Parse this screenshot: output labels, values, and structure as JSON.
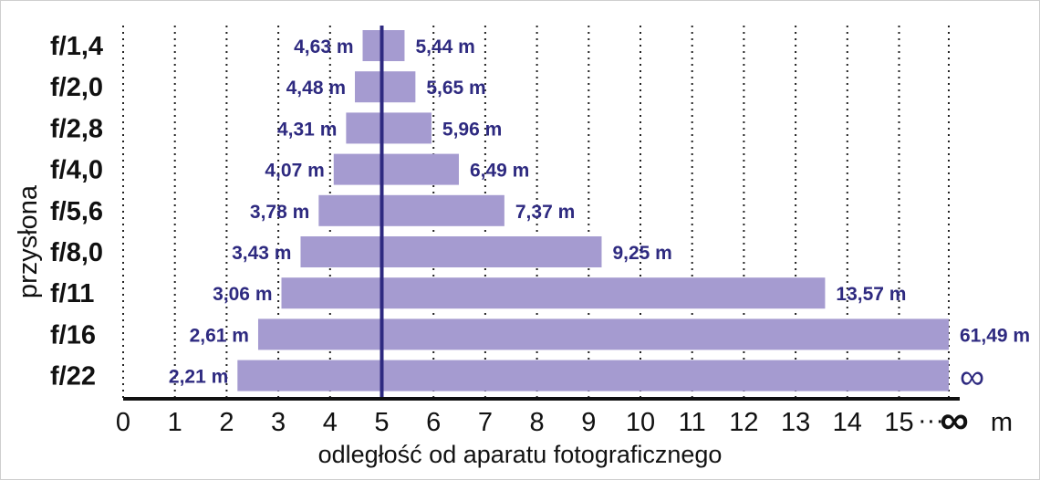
{
  "chart_data": {
    "type": "bar",
    "orientation": "horizontal-range",
    "ylabel": "przysłona",
    "xlabel": "odległość od aparatu fotograficznego",
    "x_unit": "m",
    "x_ticks": [
      "0",
      "1",
      "2",
      "3",
      "4",
      "5",
      "6",
      "7",
      "8",
      "9",
      "10",
      "11",
      "12",
      "13",
      "14",
      "15"
    ],
    "x_infinity_symbol": "∞",
    "x_ellipsis": "···",
    "focus_distance_m": 5,
    "grid": "vertical dotted",
    "colors": {
      "bar": "#a59bd0",
      "focus_line": "#2e2a80",
      "labels": "#2e2a80",
      "axis": "#111111"
    },
    "categories": [
      "f/1,4",
      "f/2,0",
      "f/2,8",
      "f/4,0",
      "f/5,6",
      "f/8,0",
      "f/11",
      "f/16",
      "f/22"
    ],
    "near": [
      4.63,
      4.48,
      4.31,
      4.07,
      3.78,
      3.43,
      3.06,
      2.61,
      2.21
    ],
    "far": [
      5.44,
      5.65,
      5.96,
      6.49,
      7.37,
      9.25,
      13.57,
      61.49,
      "infinity"
    ],
    "near_labels": [
      "4,63 m",
      "4,48 m",
      "4,31 m",
      "4,07 m",
      "3,78 m",
      "3,43 m",
      "3,06 m",
      "2,61 m",
      "2,21 m"
    ],
    "far_labels": [
      "5,44 m",
      "5,65 m",
      "5,96 m",
      "6,49 m",
      "7,37 m",
      "9,25 m",
      "13,57 m",
      "61,49 m",
      "∞"
    ]
  }
}
